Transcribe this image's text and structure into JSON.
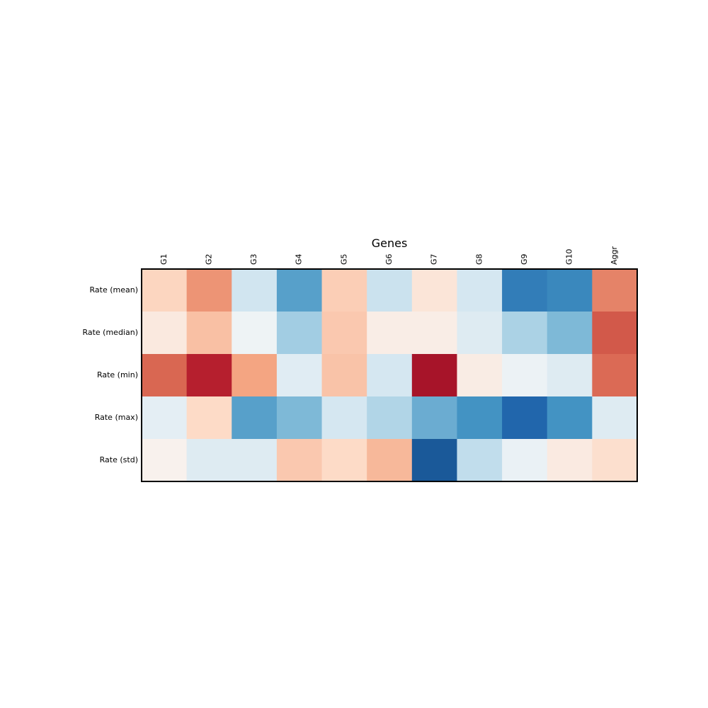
{
  "chart_data": {
    "type": "heatmap",
    "title": "Genes",
    "columns": [
      "G1",
      "G2",
      "G3",
      "G4",
      "G5",
      "G6",
      "G7",
      "G8",
      "G9",
      "G10",
      "Aggr"
    ],
    "rows": [
      "Rate (mean)",
      "Rate (median)",
      "Rate (min)",
      "Rate (max)",
      "Rate (std)"
    ],
    "values": [
      [
        0.22,
        0.45,
        -0.2,
        -0.55,
        0.25,
        -0.22,
        0.13,
        -0.18,
        -0.7,
        -0.65,
        0.5
      ],
      [
        0.1,
        0.3,
        -0.05,
        -0.35,
        0.27,
        0.07,
        0.07,
        -0.13,
        -0.32,
        -0.45,
        0.62
      ],
      [
        0.58,
        0.78,
        0.4,
        -0.12,
        0.29,
        -0.18,
        0.83,
        0.08,
        -0.06,
        -0.13,
        0.57
      ],
      [
        -0.1,
        0.2,
        -0.55,
        -0.45,
        -0.18,
        -0.3,
        -0.5,
        -0.6,
        -0.8,
        -0.6,
        -0.13
      ],
      [
        0.04,
        -0.13,
        -0.13,
        0.27,
        0.2,
        0.33,
        -0.85,
        -0.25,
        -0.07,
        0.09,
        0.17
      ]
    ],
    "vmin": -1,
    "vmax": 1,
    "colormap": "RdBu_r",
    "colorbar": false,
    "grid": false
  }
}
